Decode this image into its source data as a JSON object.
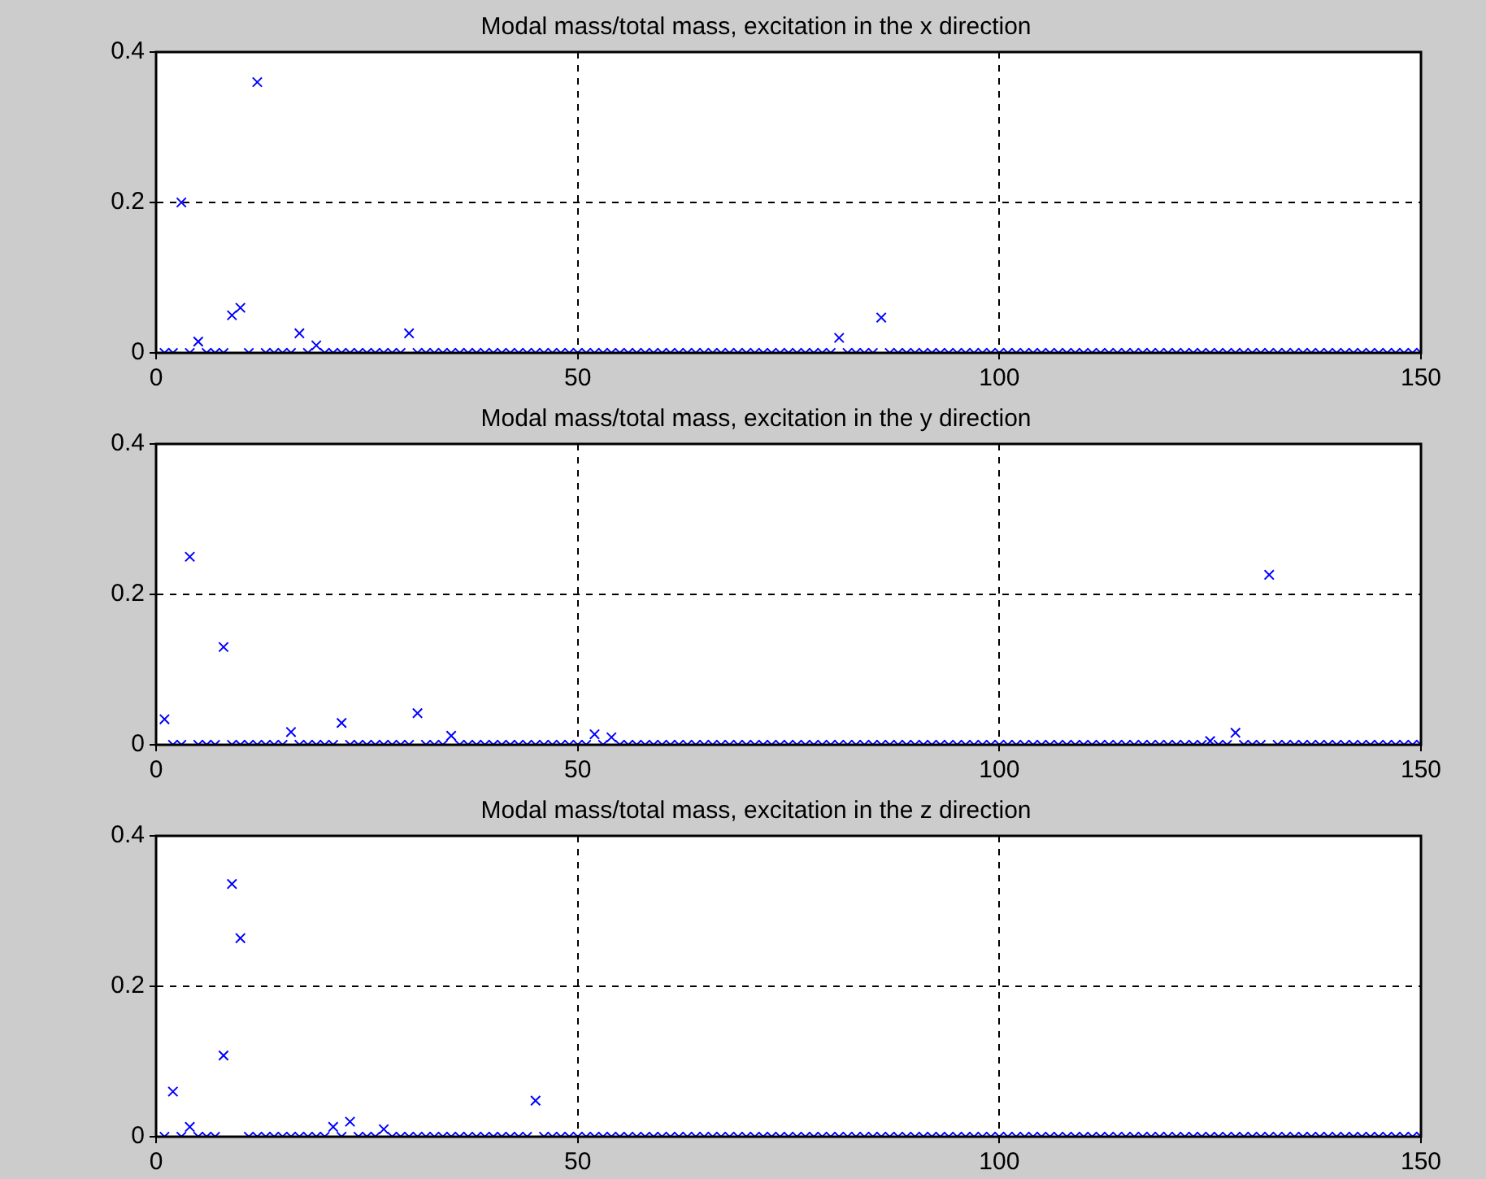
{
  "chart_data": [
    {
      "type": "scatter",
      "title": "Modal mass/total mass, excitation in the x direction",
      "x": [
        1,
        2,
        3,
        4,
        5,
        6,
        7,
        8,
        9,
        10,
        11,
        12,
        13,
        14,
        15,
        16,
        17,
        18,
        19,
        20,
        21,
        22,
        23,
        24,
        25,
        26,
        27,
        28,
        29,
        30,
        31,
        32,
        33,
        34,
        35,
        36,
        37,
        38,
        39,
        40,
        41,
        42,
        43,
        44,
        45,
        46,
        47,
        48,
        49,
        50,
        51,
        52,
        53,
        54,
        55,
        56,
        57,
        58,
        59,
        60,
        61,
        62,
        63,
        64,
        65,
        66,
        67,
        68,
        69,
        70,
        71,
        72,
        73,
        74,
        75,
        76,
        77,
        78,
        79,
        80,
        81,
        82,
        83,
        84,
        85,
        86,
        87,
        88,
        89,
        90,
        91,
        92,
        93,
        94,
        95,
        96,
        97,
        98,
        99,
        100,
        101,
        102,
        103,
        104,
        105,
        106,
        107,
        108,
        109,
        110,
        111,
        112,
        113,
        114,
        115,
        116,
        117,
        118,
        119,
        120,
        121,
        122,
        123,
        124,
        125,
        126,
        127,
        128,
        129,
        130,
        131,
        132,
        133,
        134,
        135,
        136,
        137,
        138,
        139,
        140,
        141,
        142,
        143,
        144,
        145,
        146,
        147,
        148,
        149,
        150
      ],
      "series": [
        {
          "color": "#0000ff",
          "values": [
            0,
            0,
            0.2,
            0,
            0.015,
            0,
            0,
            0,
            0.05,
            0.06,
            0,
            0.36,
            0,
            0,
            0,
            0,
            0.026,
            0,
            0.01,
            0,
            0,
            0,
            0,
            0,
            0,
            0,
            0,
            0,
            0,
            0.026,
            0,
            0,
            0,
            0,
            0,
            0,
            0,
            0,
            0,
            0,
            0,
            0,
            0,
            0,
            0,
            0,
            0,
            0,
            0,
            0,
            0,
            0,
            0,
            0,
            0,
            0,
            0,
            0,
            0,
            0,
            0,
            0,
            0,
            0,
            0,
            0,
            0,
            0,
            0,
            0,
            0,
            0,
            0,
            0,
            0,
            0,
            0,
            0,
            0,
            0,
            0.02,
            0,
            0,
            0,
            0,
            0.047,
            0,
            0,
            0,
            0,
            0,
            0,
            0,
            0,
            0,
            0,
            0,
            0,
            0,
            0,
            0,
            0,
            0,
            0,
            0,
            0,
            0,
            0,
            0,
            0,
            0,
            0,
            0,
            0,
            0,
            0,
            0,
            0,
            0,
            0,
            0,
            0,
            0,
            0,
            0,
            0,
            0,
            0,
            0,
            0,
            0,
            0,
            0,
            0,
            0,
            0,
            0,
            0,
            0,
            0,
            0,
            0,
            0,
            0,
            0,
            0,
            0,
            0,
            0,
            0
          ]
        }
      ],
      "xlim": [
        0,
        150
      ],
      "xticks": [
        0,
        50,
        100,
        150
      ],
      "ylim": [
        0,
        0.4
      ],
      "yticks": [
        0,
        0.2,
        0.4
      ],
      "grid": true,
      "marker": "cross",
      "legend": false
    },
    {
      "type": "scatter",
      "title": "Modal mass/total mass, excitation in the y direction",
      "x": [
        1,
        2,
        3,
        4,
        5,
        6,
        7,
        8,
        9,
        10,
        11,
        12,
        13,
        14,
        15,
        16,
        17,
        18,
        19,
        20,
        21,
        22,
        23,
        24,
        25,
        26,
        27,
        28,
        29,
        30,
        31,
        32,
        33,
        34,
        35,
        36,
        37,
        38,
        39,
        40,
        41,
        42,
        43,
        44,
        45,
        46,
        47,
        48,
        49,
        50,
        51,
        52,
        53,
        54,
        55,
        56,
        57,
        58,
        59,
        60,
        61,
        62,
        63,
        64,
        65,
        66,
        67,
        68,
        69,
        70,
        71,
        72,
        73,
        74,
        75,
        76,
        77,
        78,
        79,
        80,
        81,
        82,
        83,
        84,
        85,
        86,
        87,
        88,
        89,
        90,
        91,
        92,
        93,
        94,
        95,
        96,
        97,
        98,
        99,
        100,
        101,
        102,
        103,
        104,
        105,
        106,
        107,
        108,
        109,
        110,
        111,
        112,
        113,
        114,
        115,
        116,
        117,
        118,
        119,
        120,
        121,
        122,
        123,
        124,
        125,
        126,
        127,
        128,
        129,
        130,
        131,
        132,
        133,
        134,
        135,
        136,
        137,
        138,
        139,
        140,
        141,
        142,
        143,
        144,
        145,
        146,
        147,
        148,
        149,
        150
      ],
      "series": [
        {
          "color": "#0000ff",
          "values": [
            0.034,
            0,
            0,
            0.25,
            0,
            0,
            0,
            0.13,
            0,
            0,
            0,
            0,
            0,
            0,
            0,
            0.017,
            0,
            0,
            0,
            0,
            0,
            0.029,
            0,
            0,
            0,
            0,
            0,
            0,
            0,
            0,
            0.042,
            0,
            0,
            0,
            0.012,
            0,
            0,
            0,
            0,
            0,
            0,
            0,
            0,
            0,
            0,
            0,
            0,
            0,
            0,
            0,
            0,
            0.014,
            0,
            0.01,
            0,
            0,
            0,
            0,
            0,
            0,
            0,
            0,
            0,
            0,
            0,
            0,
            0,
            0,
            0,
            0,
            0,
            0,
            0,
            0,
            0,
            0,
            0,
            0,
            0,
            0,
            0,
            0,
            0,
            0,
            0,
            0,
            0,
            0,
            0,
            0,
            0,
            0,
            0,
            0,
            0,
            0,
            0,
            0,
            0,
            0,
            0,
            0,
            0,
            0,
            0,
            0,
            0,
            0,
            0,
            0,
            0,
            0,
            0,
            0,
            0,
            0,
            0,
            0,
            0,
            0,
            0,
            0,
            0,
            0,
            0.005,
            0,
            0,
            0.016,
            0,
            0,
            0,
            0.226,
            0,
            0,
            0,
            0,
            0,
            0,
            0,
            0,
            0,
            0,
            0,
            0,
            0,
            0,
            0,
            0,
            0,
            0
          ]
        }
      ],
      "xlim": [
        0,
        150
      ],
      "xticks": [
        0,
        50,
        100,
        150
      ],
      "ylim": [
        0,
        0.4
      ],
      "yticks": [
        0,
        0.2,
        0.4
      ],
      "grid": true,
      "marker": "cross",
      "legend": false
    },
    {
      "type": "scatter",
      "title": "Modal mass/total mass, excitation in the z direction",
      "x": [
        1,
        2,
        3,
        4,
        5,
        6,
        7,
        8,
        9,
        10,
        11,
        12,
        13,
        14,
        15,
        16,
        17,
        18,
        19,
        20,
        21,
        22,
        23,
        24,
        25,
        26,
        27,
        28,
        29,
        30,
        31,
        32,
        33,
        34,
        35,
        36,
        37,
        38,
        39,
        40,
        41,
        42,
        43,
        44,
        45,
        46,
        47,
        48,
        49,
        50,
        51,
        52,
        53,
        54,
        55,
        56,
        57,
        58,
        59,
        60,
        61,
        62,
        63,
        64,
        65,
        66,
        67,
        68,
        69,
        70,
        71,
        72,
        73,
        74,
        75,
        76,
        77,
        78,
        79,
        80,
        81,
        82,
        83,
        84,
        85,
        86,
        87,
        88,
        89,
        90,
        91,
        92,
        93,
        94,
        95,
        96,
        97,
        98,
        99,
        100,
        101,
        102,
        103,
        104,
        105,
        106,
        107,
        108,
        109,
        110,
        111,
        112,
        113,
        114,
        115,
        116,
        117,
        118,
        119,
        120,
        121,
        122,
        123,
        124,
        125,
        126,
        127,
        128,
        129,
        130,
        131,
        132,
        133,
        134,
        135,
        136,
        137,
        138,
        139,
        140,
        141,
        142,
        143,
        144,
        145,
        146,
        147,
        148,
        149,
        150
      ],
      "series": [
        {
          "color": "#0000ff",
          "values": [
            0,
            0.06,
            0,
            0.013,
            0,
            0,
            0,
            0.108,
            0.336,
            0.264,
            0,
            0,
            0,
            0,
            0,
            0,
            0,
            0,
            0,
            0,
            0.013,
            0,
            0.02,
            0,
            0,
            0,
            0.01,
            0,
            0,
            0,
            0,
            0,
            0,
            0,
            0,
            0,
            0,
            0,
            0,
            0,
            0,
            0,
            0,
            0,
            0.048,
            0,
            0,
            0,
            0,
            0,
            0,
            0,
            0,
            0,
            0,
            0,
            0,
            0,
            0,
            0,
            0,
            0,
            0,
            0,
            0,
            0,
            0,
            0,
            0,
            0,
            0,
            0,
            0,
            0,
            0,
            0,
            0,
            0,
            0,
            0,
            0,
            0,
            0,
            0,
            0,
            0,
            0,
            0,
            0,
            0,
            0,
            0,
            0,
            0,
            0,
            0,
            0,
            0,
            0,
            0,
            0,
            0,
            0,
            0,
            0,
            0,
            0,
            0,
            0,
            0,
            0,
            0,
            0,
            0,
            0,
            0,
            0,
            0,
            0,
            0,
            0,
            0,
            0,
            0,
            0,
            0,
            0,
            0,
            0,
            0,
            0,
            0,
            0,
            0,
            0,
            0,
            0,
            0,
            0,
            0,
            0,
            0,
            0,
            0,
            0,
            0,
            0,
            0,
            0,
            0
          ]
        }
      ],
      "xlim": [
        0,
        150
      ],
      "xticks": [
        0,
        50,
        100,
        150
      ],
      "ylim": [
        0,
        0.4
      ],
      "yticks": [
        0,
        0.2,
        0.4
      ],
      "grid": true,
      "marker": "cross",
      "legend": false
    }
  ]
}
